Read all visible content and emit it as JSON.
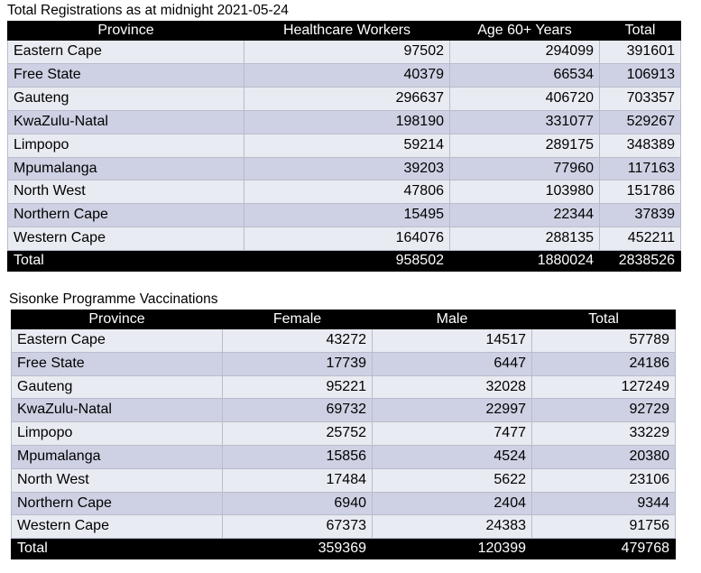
{
  "registrations": {
    "caption": "Total Registrations as at midnight 2021-05-24",
    "headers": [
      "Province",
      "Healthcare Workers",
      "Age 60+ Years",
      "Total"
    ],
    "rows": [
      [
        "Eastern Cape",
        "97502",
        "294099",
        "391601"
      ],
      [
        "Free State",
        "40379",
        "66534",
        "106913"
      ],
      [
        "Gauteng",
        "296637",
        "406720",
        "703357"
      ],
      [
        "KwaZulu-Natal",
        "198190",
        "331077",
        "529267"
      ],
      [
        "Limpopo",
        "59214",
        "289175",
        "348389"
      ],
      [
        "Mpumalanga",
        "39203",
        "77960",
        "117163"
      ],
      [
        "North West",
        "47806",
        "103980",
        "151786"
      ],
      [
        "Northern Cape",
        "15495",
        "22344",
        "37839"
      ],
      [
        "Western Cape",
        "164076",
        "288135",
        "452211"
      ]
    ],
    "total": [
      "Total",
      "958502",
      "1880024",
      "2838526"
    ]
  },
  "sisonke": {
    "caption": "Sisonke Programme Vaccinations",
    "headers": [
      "Province",
      "Female",
      "Male",
      "Total"
    ],
    "rows": [
      [
        "Eastern Cape",
        "43272",
        "14517",
        "57789"
      ],
      [
        "Free State",
        "17739",
        "6447",
        "24186"
      ],
      [
        "Gauteng",
        "95221",
        "32028",
        "127249"
      ],
      [
        "KwaZulu-Natal",
        "69732",
        "22997",
        "92729"
      ],
      [
        "Limpopo",
        "25752",
        "7477",
        "33229"
      ],
      [
        "Mpumalanga",
        "15856",
        "4524",
        "20380"
      ],
      [
        "North West",
        "17484",
        "5622",
        "23106"
      ],
      [
        "Northern Cape",
        "6940",
        "2404",
        "9344"
      ],
      [
        "Western Cape",
        "67373",
        "24383",
        "91756"
      ]
    ],
    "total": [
      "Total",
      "359369",
      "120399",
      "479768"
    ]
  }
}
